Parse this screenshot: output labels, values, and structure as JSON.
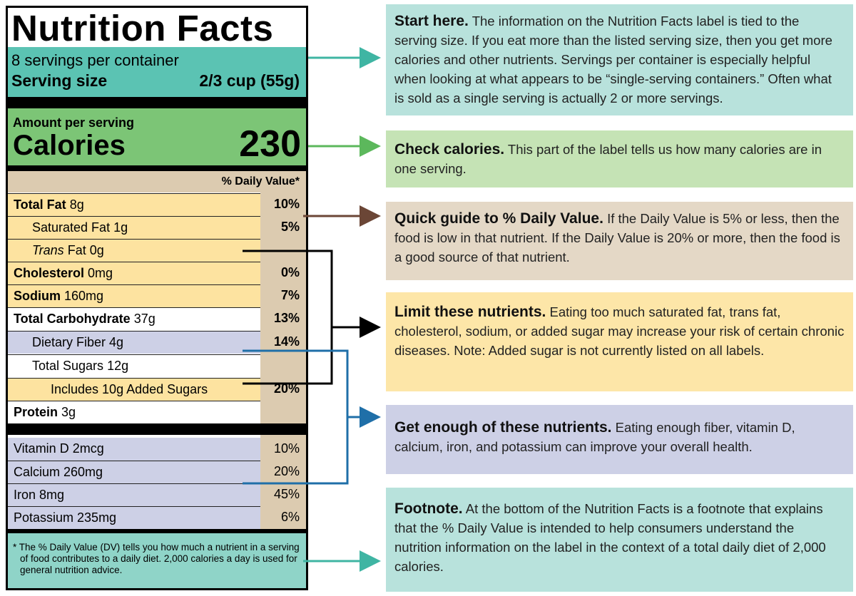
{
  "label": {
    "title": "Nutrition Facts",
    "servings": "8 servings per container",
    "serving_size_label": "Serving size",
    "serving_size": "2/3 cup (55g)",
    "amount_per_serving": "Amount per serving",
    "calories_label": "Calories",
    "calories": 230,
    "dv_header": "% Daily Value*",
    "nutrients": [
      {
        "name": "Total Fat",
        "amount": "8g",
        "dv": "10%"
      },
      {
        "name": "Saturated Fat",
        "amount": "1g",
        "dv": "5%"
      },
      {
        "name_italic": "Trans",
        "name": "Fat",
        "amount": "0g"
      },
      {
        "name": "Cholesterol",
        "amount": "0mg",
        "dv": "0%"
      },
      {
        "name": "Sodium",
        "amount": "160mg",
        "dv": "7%"
      },
      {
        "name": "Total Carbohydrate",
        "amount": "37g",
        "dv": "13%"
      },
      {
        "name": "Dietary Fiber",
        "amount": "4g",
        "dv": "14%"
      },
      {
        "name": "Total Sugars",
        "amount": "12g"
      },
      {
        "name": "Includes 10g Added Sugars",
        "dv": "20%"
      },
      {
        "name": "Protein",
        "amount": "3g"
      }
    ],
    "vitamins": [
      {
        "name": "Vitamin D 2mcg",
        "dv": "10%"
      },
      {
        "name": "Calcium 260mg",
        "dv": "20%"
      },
      {
        "name": "Iron 8mg",
        "dv": "45%"
      },
      {
        "name": "Potassium 235mg",
        "dv": "6%"
      }
    ],
    "footnote": "* The % Daily Value (DV) tells you how much a nutrient in a serving of food contributes to a daily diet. 2,000 calories a day is used for general nutrition advice."
  },
  "callouts": [
    {
      "heading": "Start here.",
      "text": "The information on the Nutrition Facts label is tied to the serving size. If you eat more than the listed serving size, then you get more calories and other nutrients. Servings per container is especially helpful when looking at what appears to be “single-serving containers.” Often what is sold as a single serving is actually 2 or more servings."
    },
    {
      "heading": "Check calories.",
      "text": "This part of the label tells us how many calories are in one serving."
    },
    {
      "heading": "Quick guide to % Daily Value.",
      "text": "If the Daily Value is 5% or less, then the food is low in that nutrient. If the Daily Value is 20% or more, then the food is a good source of that nutrient."
    },
    {
      "heading": "Limit these nutrients.",
      "text": "Eating too much saturated fat, trans fat, cholesterol, sodium, or added sugar may increase your risk of certain chronic diseases. Note: Added sugar is not currently listed on all labels."
    },
    {
      "heading": "Get enough of these nutrients.",
      "text": "Eating enough fiber, vitamin D, calcium, iron, and potassium can improve your overall health."
    },
    {
      "heading": "Footnote.",
      "text": "At the bottom of the Nutrition Facts is a footnote that explains that the % Daily Value is intended to help consumers understand the nutrition information on the label in the context of a total daily diet of 2,000 calories."
    }
  ]
}
